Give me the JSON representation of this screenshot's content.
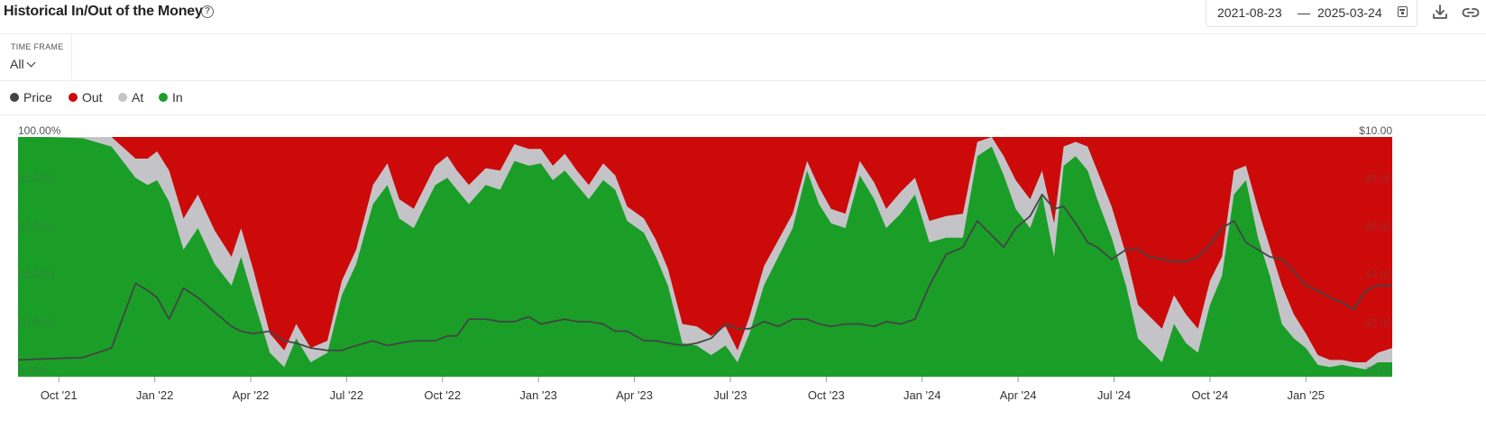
{
  "header": {
    "title": "Historical In/Out of the Money",
    "help_icon": "?",
    "date_start": "2021-08-23",
    "date_separator": "—",
    "date_end": "2025-03-24"
  },
  "icons": {
    "help": "help-circle-icon",
    "calendar": "calendar-icon",
    "download": "download-icon",
    "link": "link-icon",
    "chevron": "chevron-down-icon"
  },
  "timeframe": {
    "label": "TIME FRAME",
    "value": "All"
  },
  "legend": [
    {
      "label": "Price",
      "color": "#444444"
    },
    {
      "label": "Out",
      "color": "#cc0a0a"
    },
    {
      "label": "At",
      "color": "#c4c4c8"
    },
    {
      "label": "In",
      "color": "#1a9e28"
    }
  ],
  "chart_data": {
    "type": "area",
    "stacked_percent": true,
    "y_left_ticks": [
      "0.00%",
      "20.00%",
      "40.00%",
      "60.00%",
      "80.00%",
      "100.00%"
    ],
    "y_left_range": [
      0,
      100
    ],
    "y_right_ticks": [
      "$0.00",
      "$2.00",
      "$4.00",
      "$6.00",
      "$8.00",
      "$10.00"
    ],
    "y_right_range": [
      0,
      10
    ],
    "x_ticks": [
      "Oct '21",
      "Jan '22",
      "Apr '22",
      "Jul '22",
      "Oct '22",
      "Jan '23",
      "Apr '23",
      "Jul '23",
      "Oct '23",
      "Jan '24",
      "Apr '24",
      "Jul '24",
      "Oct '24",
      "Jan '25"
    ],
    "x_tick_positions": [
      0.7,
      4.7,
      8.7,
      12.7,
      16.7,
      20.7,
      24.7,
      28.7,
      32.7,
      36.7,
      40.7,
      44.7,
      48.7,
      52.7
    ],
    "x_range": [
      -1,
      56.3
    ],
    "series": [
      {
        "name": "In",
        "color": "#1a9e28",
        "x": [
          -1,
          0.2,
          1.7,
          2.9,
          3.9,
          4.4,
          4.8,
          5.3,
          5.9,
          6.5,
          7.2,
          7.9,
          8.3,
          8.8,
          9.5,
          10.1,
          10.6,
          11.2,
          11.9,
          12.5,
          13.1,
          13.8,
          14.4,
          14.9,
          15.5,
          15.9,
          16.4,
          16.9,
          17.3,
          17.8,
          18.5,
          19.1,
          19.7,
          20.3,
          20.8,
          21.3,
          21.8,
          22.3,
          22.8,
          23.4,
          23.9,
          24.4,
          25.1,
          25.6,
          26.1,
          26.7,
          27.3,
          27.9,
          28.5,
          29.0,
          29.5,
          30.1,
          30.7,
          31.3,
          31.9,
          32.4,
          32.9,
          33.5,
          34.1,
          34.7,
          35.2,
          35.8,
          36.4,
          37.0,
          37.7,
          38.4,
          39.0,
          39.6,
          40.1,
          40.6,
          41.2,
          41.7,
          42.2,
          42.6,
          43.1,
          43.6,
          44.0,
          44.6,
          45.2,
          45.7,
          46.2,
          46.7,
          47.2,
          47.7,
          48.2,
          48.7,
          49.2,
          49.7,
          50.2,
          50.7,
          51.2,
          51.7,
          52.2,
          52.7,
          53.2,
          53.7,
          54.2,
          54.7,
          55.2,
          55.7,
          56.3
        ],
        "values": [
          100,
          100,
          99.5,
          96,
          83,
          80,
          82,
          73,
          53,
          62,
          47,
          38,
          50,
          33,
          10,
          4,
          16,
          6,
          10,
          34,
          47,
          72,
          80,
          66,
          62,
          70,
          80,
          83,
          78,
          72,
          80,
          78,
          90,
          88,
          89,
          82,
          86,
          80,
          74,
          82,
          78,
          65,
          60,
          50,
          38,
          14,
          13,
          9,
          13,
          6,
          18,
          38,
          50,
          62,
          86,
          72,
          64,
          62,
          84,
          74,
          62,
          68,
          76,
          56,
          58,
          58,
          92,
          96,
          84,
          70,
          62,
          76,
          50,
          88,
          92,
          86,
          74,
          58,
          38,
          16,
          11,
          6,
          22,
          14,
          10,
          30,
          42,
          76,
          82,
          58,
          42,
          22,
          16,
          12,
          5,
          4,
          5,
          4,
          3,
          6,
          6
        ]
      },
      {
        "name": "At",
        "color": "#c4c4c8",
        "x": [
          -1,
          0.2,
          1.7,
          2.9,
          3.9,
          4.4,
          4.8,
          5.3,
          5.9,
          6.5,
          7.2,
          7.9,
          8.3,
          8.8,
          9.5,
          10.1,
          10.6,
          11.2,
          11.9,
          12.5,
          13.1,
          13.8,
          14.4,
          14.9,
          15.5,
          15.9,
          16.4,
          16.9,
          17.3,
          17.8,
          18.5,
          19.1,
          19.7,
          20.3,
          20.8,
          21.3,
          21.8,
          22.3,
          22.8,
          23.4,
          23.9,
          24.4,
          25.1,
          25.6,
          26.1,
          26.7,
          27.3,
          27.9,
          28.5,
          29.0,
          29.5,
          30.1,
          30.7,
          31.3,
          31.9,
          32.4,
          32.9,
          33.5,
          34.1,
          34.7,
          35.2,
          35.8,
          36.4,
          37.0,
          37.7,
          38.4,
          39.0,
          39.6,
          40.1,
          40.6,
          41.2,
          41.7,
          42.2,
          42.6,
          43.1,
          43.6,
          44.0,
          44.6,
          45.2,
          45.7,
          46.2,
          46.7,
          47.2,
          47.7,
          48.2,
          48.7,
          49.2,
          49.7,
          50.2,
          50.7,
          51.2,
          51.7,
          52.2,
          52.7,
          53.2,
          53.7,
          54.2,
          54.7,
          55.2,
          55.7,
          56.3
        ],
        "values": [
          0,
          0,
          0.5,
          4,
          8,
          11,
          12,
          13,
          13,
          14,
          14,
          12,
          12,
          12,
          8,
          7,
          6,
          6,
          5,
          6,
          6,
          8,
          9,
          8,
          8,
          8,
          8,
          9,
          8,
          8,
          7,
          8,
          7,
          7,
          6,
          6,
          7,
          6,
          6,
          7,
          6,
          6,
          6,
          7,
          7,
          8,
          8,
          8,
          8,
          5,
          7,
          8,
          7,
          6,
          4,
          7,
          6,
          6,
          6,
          7,
          8,
          9,
          7,
          9,
          9,
          10,
          6,
          4,
          8,
          12,
          12,
          10,
          14,
          8,
          6,
          10,
          12,
          13,
          13,
          14,
          14,
          14,
          12,
          12,
          10,
          10,
          8,
          10,
          6,
          12,
          12,
          16,
          10,
          6,
          4,
          3,
          2,
          2,
          3,
          4,
          6
        ]
      },
      {
        "name": "Out",
        "color": "#cc0a0a",
        "values_note": "remainder to 100%"
      },
      {
        "name": "Price",
        "color": "#444444",
        "x": [
          -1,
          0.2,
          1.7,
          2.9,
          3.9,
          4.4,
          4.8,
          5.3,
          5.9,
          6.5,
          7.2,
          7.9,
          8.3,
          8.8,
          9.5,
          10.1,
          10.6,
          11.2,
          11.9,
          12.5,
          13.1,
          13.8,
          14.4,
          14.9,
          15.5,
          15.9,
          16.4,
          16.9,
          17.3,
          17.8,
          18.5,
          19.1,
          19.7,
          20.3,
          20.8,
          21.3,
          21.8,
          22.3,
          22.8,
          23.4,
          23.9,
          24.4,
          25.1,
          25.6,
          26.1,
          26.7,
          27.3,
          27.9,
          28.5,
          29.0,
          29.5,
          30.1,
          30.7,
          31.3,
          31.9,
          32.4,
          32.9,
          33.5,
          34.1,
          34.7,
          35.2,
          35.8,
          36.4,
          37.0,
          37.7,
          38.4,
          39.0,
          39.6,
          40.1,
          40.6,
          41.2,
          41.7,
          42.2,
          42.6,
          43.1,
          43.6,
          44.0,
          44.6,
          45.2,
          45.7,
          46.2,
          46.7,
          47.2,
          47.7,
          48.2,
          48.7,
          49.2,
          49.7,
          50.2,
          50.7,
          51.2,
          51.7,
          52.2,
          52.7,
          53.2,
          53.7,
          54.2,
          54.7,
          55.2,
          55.7,
          56.3
        ],
        "values": [
          0.7,
          0.75,
          0.8,
          1.2,
          3.9,
          3.6,
          3.3,
          2.4,
          3.7,
          3.3,
          2.7,
          2.1,
          1.9,
          1.8,
          1.9,
          1.5,
          1.4,
          1.2,
          1.1,
          1.1,
          1.3,
          1.5,
          1.3,
          1.4,
          1.5,
          1.5,
          1.5,
          1.7,
          1.7,
          2.4,
          2.4,
          2.3,
          2.3,
          2.5,
          2.2,
          2.3,
          2.4,
          2.3,
          2.3,
          2.2,
          1.9,
          1.9,
          1.5,
          1.5,
          1.4,
          1.3,
          1.4,
          1.6,
          2.2,
          2.0,
          2.0,
          2.3,
          2.1,
          2.4,
          2.4,
          2.2,
          2.1,
          2.2,
          2.2,
          2.1,
          2.3,
          2.2,
          2.4,
          3.8,
          5.1,
          5.4,
          6.5,
          5.9,
          5.4,
          6.2,
          6.7,
          7.6,
          7.0,
          7.1,
          6.4,
          5.6,
          5.4,
          4.9,
          5.3,
          5.3,
          5.0,
          4.9,
          4.8,
          4.8,
          5.0,
          5.5,
          6.2,
          6.5,
          5.6,
          5.3,
          5.0,
          4.9,
          4.4,
          3.8,
          3.6,
          3.3,
          3.1,
          2.8,
          3.6,
          3.8,
          3.8
        ]
      }
    ]
  }
}
